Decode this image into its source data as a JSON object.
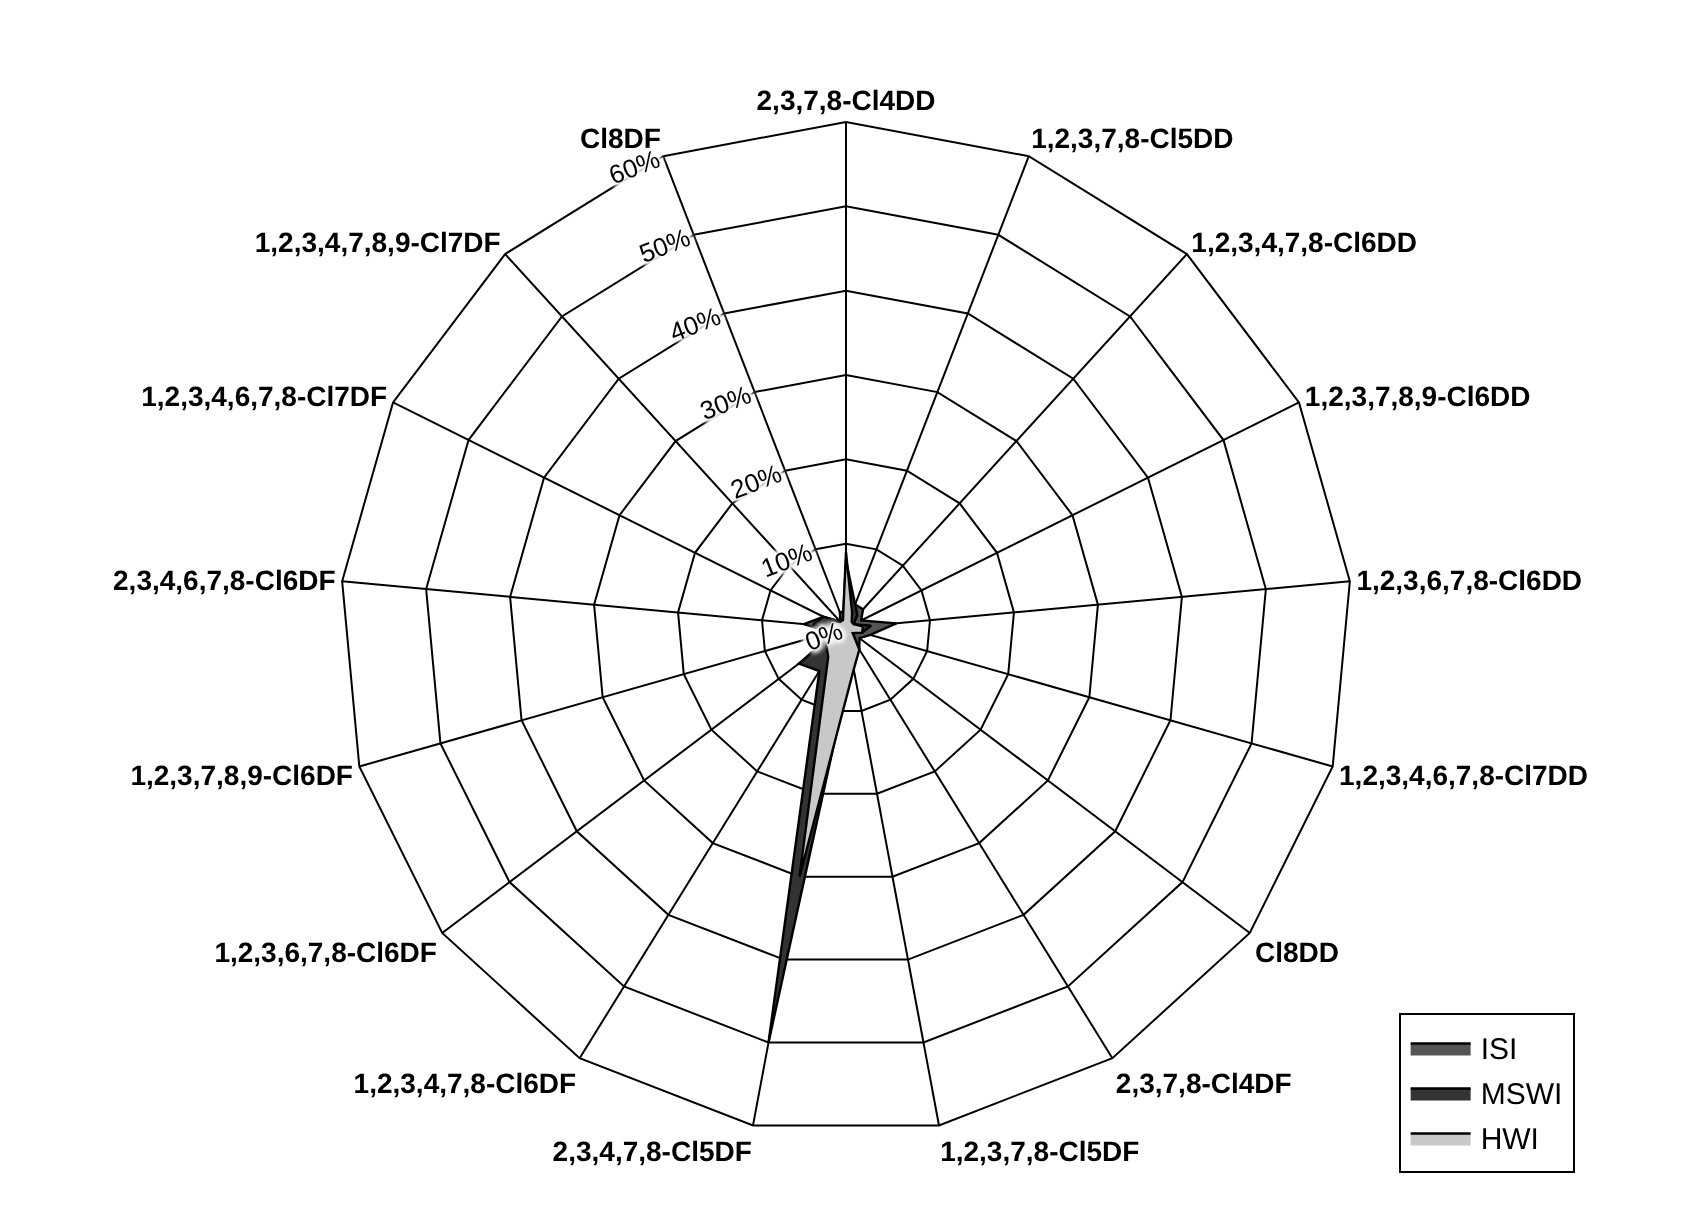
{
  "chart_data": {
    "type": "radar",
    "categories": [
      "2,3,7,8-Cl4DD",
      "1,2,3,7,8-Cl5DD",
      "1,2,3,4,7,8-Cl6DD",
      "1,2,3,7,8,9-Cl6DD",
      "1,2,3,6,7,8-Cl6DD",
      "1,2,3,4,6,7,8-Cl7DD",
      "Cl8DD",
      "2,3,7,8-Cl4DF",
      "1,2,3,7,8-Cl5DF",
      "2,3,4,7,8-Cl5DF",
      "1,2,3,4,7,8-Cl6DF",
      "1,2,3,6,7,8-Cl6DF",
      "1,2,3,7,8,9-Cl6DF",
      "2,3,4,6,7,8-Cl6DF",
      "1,2,3,4,6,7,8-Cl7DF",
      "1,2,3,4,7,8,9-Cl7DF",
      "Cl8DF"
    ],
    "series": [
      {
        "name": "ISI",
        "color": "#555555",
        "values": [
          2,
          3,
          3,
          2,
          6,
          3,
          2,
          3,
          3,
          8,
          5,
          6,
          2,
          5,
          3,
          1,
          2
        ]
      },
      {
        "name": "MSWI",
        "color": "#333333",
        "values": [
          8,
          3,
          2,
          1,
          3,
          2,
          1,
          3,
          4,
          50,
          6,
          7,
          1,
          4,
          3,
          1,
          1
        ]
      },
      {
        "name": "HWI",
        "color": "#c8c8c8",
        "values": [
          9,
          2,
          1,
          1,
          2,
          2,
          1,
          3,
          5,
          30,
          4,
          3,
          1,
          2,
          2,
          1,
          1
        ]
      }
    ],
    "ylim": [
      0,
      60
    ],
    "yticks": [
      {
        "value": 0,
        "label": "0%"
      },
      {
        "value": 10,
        "label": "10%"
      },
      {
        "value": 20,
        "label": "20%"
      },
      {
        "value": 30,
        "label": "30%"
      },
      {
        "value": 40,
        "label": "40%"
      },
      {
        "value": 50,
        "label": "50%"
      },
      {
        "value": 60,
        "label": "60%"
      }
    ],
    "grid": true,
    "legend": "bottom right"
  }
}
